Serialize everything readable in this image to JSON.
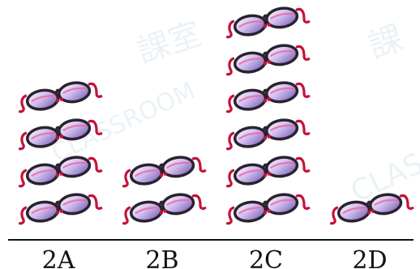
{
  "chart_data": {
    "type": "pictograph",
    "categories": [
      "2A",
      "2B",
      "2C",
      "2D"
    ],
    "values": [
      4,
      2,
      6,
      1
    ],
    "icon": "glasses-icon",
    "colors": {
      "frame": "#2b2230",
      "temple": "#c4123a",
      "lens_tint": "#a98bd6",
      "lens_glint": "#5a3fa0",
      "axis": "#111111"
    }
  },
  "watermark": {
    "text_left": "課室",
    "text_right": "課",
    "text_faint": "CLASSROOM",
    "text_edge": "CLAS"
  }
}
